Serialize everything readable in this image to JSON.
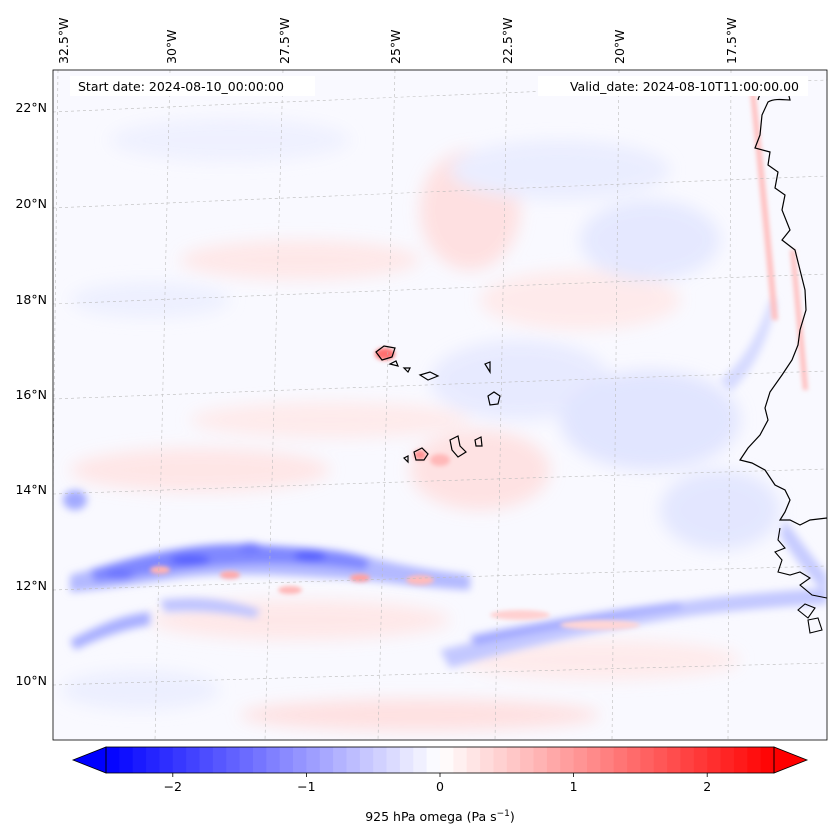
{
  "header": {
    "start_date": "Start date: 2024-08-10_00:00:00",
    "valid_date": "Valid_date: 2024-08-10T11:00:00.00"
  },
  "map": {
    "projection": "lambert-conformal",
    "lon_labels": [
      "32.5°W",
      "30°W",
      "27.5°W",
      "25°W",
      "22.5°W",
      "20°W",
      "17.5°W"
    ],
    "lat_labels": [
      "22°N",
      "20°N",
      "18°N",
      "16°N",
      "14°N",
      "12°N",
      "10°N"
    ],
    "features": [
      "Cape Verde islands",
      "West African coastline (Mauritania, Senegal, Gambia, Guinea-Bissau)"
    ]
  },
  "colorbar": {
    "label": "925 hPa omega (Pa s",
    "label_sup": "−1",
    "label_close": ")",
    "tick_labels": [
      "−2",
      "−1",
      "0",
      "1",
      "2"
    ],
    "ticks": [
      -2,
      -1,
      0,
      1,
      2
    ],
    "range": [
      -2.5,
      2.5
    ],
    "colormap": "bwr",
    "colors": {
      "negative": "#0000ff",
      "zero": "#ffffff",
      "positive": "#ff0000"
    },
    "extend": "both"
  }
}
